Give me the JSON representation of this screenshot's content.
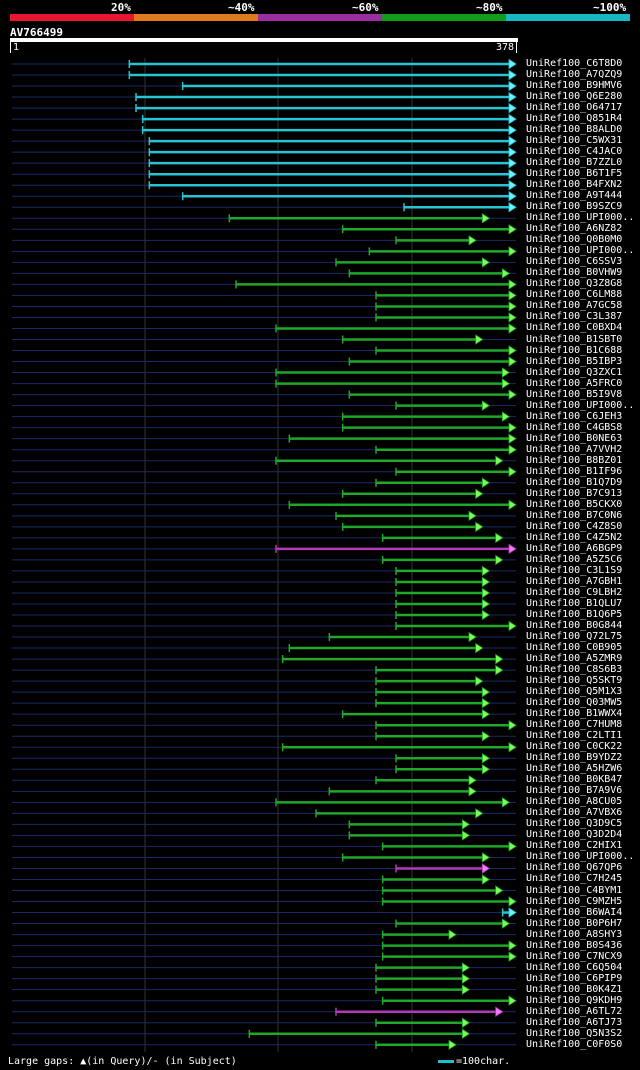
{
  "legend": {
    "labels": [
      "20%",
      "~40%",
      "~60%",
      "~80%",
      "~100%"
    ],
    "colors": [
      "#e8162e",
      "#e07a1f",
      "#9b2fa0",
      "#119c1a",
      "#17b8c4"
    ]
  },
  "query": {
    "name": "AV766499",
    "start": "1",
    "end": "378",
    "length": 378
  },
  "footer": {
    "gaps": "Large gaps: ▲(in Query)/- (in Subject)",
    "key": "=100char."
  },
  "hits": [
    {
      "label": "UniRef100_C6T8D0",
      "start": 88,
      "end": 378,
      "color": "cyan"
    },
    {
      "label": "UniRef100_A7QZQ9",
      "start": 88,
      "end": 378,
      "color": "cyan"
    },
    {
      "label": "UniRef100_B9HMV6",
      "start": 128,
      "end": 378,
      "color": "cyan"
    },
    {
      "label": "UniRef100_Q6E280",
      "start": 93,
      "end": 378,
      "color": "cyan"
    },
    {
      "label": "UniRef100_O64717",
      "start": 93,
      "end": 378,
      "color": "cyan"
    },
    {
      "label": "UniRef100_Q851R4",
      "start": 98,
      "end": 378,
      "color": "cyan"
    },
    {
      "label": "UniRef100_B8ALD0",
      "start": 98,
      "end": 378,
      "color": "cyan"
    },
    {
      "label": "UniRef100_C5WX31",
      "start": 103,
      "end": 378,
      "color": "cyan"
    },
    {
      "label": "UniRef100_C4JAC0",
      "start": 103,
      "end": 378,
      "color": "cyan"
    },
    {
      "label": "UniRef100_B7ZZL0",
      "start": 103,
      "end": 378,
      "color": "cyan"
    },
    {
      "label": "UniRef100_B6T1F5",
      "start": 103,
      "end": 378,
      "color": "cyan"
    },
    {
      "label": "UniRef100_B4FXN2",
      "start": 103,
      "end": 378,
      "color": "cyan"
    },
    {
      "label": "UniRef100_A9T444",
      "start": 128,
      "end": 378,
      "color": "cyan"
    },
    {
      "label": "UniRef100_B9SZC9",
      "start": 294,
      "end": 378,
      "color": "cyan"
    },
    {
      "label": "UniRef100_UPI000..",
      "start": 163,
      "end": 358,
      "color": "green"
    },
    {
      "label": "UniRef100_A6NZ82",
      "start": 248,
      "end": 378,
      "color": "green"
    },
    {
      "label": "UniRef100_Q0B0M0",
      "start": 288,
      "end": 348,
      "color": "green"
    },
    {
      "label": "UniRef100_UPI000..",
      "start": 268,
      "end": 378,
      "color": "green"
    },
    {
      "label": "UniRef100_C6SSV3",
      "start": 243,
      "end": 358,
      "color": "green"
    },
    {
      "label": "UniRef100_B0VHW9",
      "start": 253,
      "end": 373,
      "color": "green"
    },
    {
      "label": "UniRef100_Q3Z8G8",
      "start": 168,
      "end": 378,
      "color": "green"
    },
    {
      "label": "UniRef100_C6LM88",
      "start": 273,
      "end": 378,
      "color": "green"
    },
    {
      "label": "UniRef100_A7GC58",
      "start": 273,
      "end": 378,
      "color": "green"
    },
    {
      "label": "UniRef100_C3L387",
      "start": 273,
      "end": 378,
      "color": "green"
    },
    {
      "label": "UniRef100_C0BXD4",
      "start": 198,
      "end": 378,
      "color": "green"
    },
    {
      "label": "UniRef100_B1SBT0",
      "start": 248,
      "end": 353,
      "color": "green"
    },
    {
      "label": "UniRef100_B1C688",
      "start": 273,
      "end": 378,
      "color": "green"
    },
    {
      "label": "UniRef100_B5IBP3",
      "start": 253,
      "end": 378,
      "color": "green"
    },
    {
      "label": "UniRef100_Q3ZXC1",
      "start": 198,
      "end": 373,
      "color": "green"
    },
    {
      "label": "UniRef100_A5FRC0",
      "start": 198,
      "end": 373,
      "color": "green"
    },
    {
      "label": "UniRef100_B5I9V8",
      "start": 253,
      "end": 378,
      "color": "green"
    },
    {
      "label": "UniRef100_UPI000..",
      "start": 288,
      "end": 358,
      "color": "green"
    },
    {
      "label": "UniRef100_C6JEH3",
      "start": 248,
      "end": 373,
      "color": "green"
    },
    {
      "label": "UniRef100_C4GBS8",
      "start": 248,
      "end": 378,
      "color": "green"
    },
    {
      "label": "UniRef100_B0NE63",
      "start": 208,
      "end": 378,
      "color": "green"
    },
    {
      "label": "UniRef100_A7VVH2",
      "start": 273,
      "end": 378,
      "color": "green"
    },
    {
      "label": "UniRef100_B8BZ01",
      "start": 198,
      "end": 368,
      "color": "green"
    },
    {
      "label": "UniRef100_B1IF96",
      "start": 288,
      "end": 378,
      "color": "green"
    },
    {
      "label": "UniRef100_B1Q7D9",
      "start": 273,
      "end": 358,
      "color": "green"
    },
    {
      "label": "UniRef100_B7C913",
      "start": 248,
      "end": 353,
      "color": "green"
    },
    {
      "label": "UniRef100_B5CKX0",
      "start": 208,
      "end": 378,
      "color": "green"
    },
    {
      "label": "UniRef100_B7C0N6",
      "start": 243,
      "end": 348,
      "color": "green"
    },
    {
      "label": "UniRef100_C4Z8S0",
      "start": 248,
      "end": 353,
      "color": "green"
    },
    {
      "label": "UniRef100_C4Z5N2",
      "start": 278,
      "end": 368,
      "color": "green"
    },
    {
      "label": "UniRef100_A6BGP9",
      "start": 198,
      "end": 378,
      "color": "purple"
    },
    {
      "label": "UniRef100_A5Z5C6",
      "start": 278,
      "end": 368,
      "color": "green"
    },
    {
      "label": "UniRef100_C3L1S9",
      "start": 288,
      "end": 358,
      "color": "green"
    },
    {
      "label": "UniRef100_A7GBH1",
      "start": 288,
      "end": 358,
      "color": "green"
    },
    {
      "label": "UniRef100_C9LBH2",
      "start": 288,
      "end": 358,
      "color": "green"
    },
    {
      "label": "UniRef100_B1QLU7",
      "start": 288,
      "end": 358,
      "color": "green"
    },
    {
      "label": "UniRef100_B1Q6P5",
      "start": 288,
      "end": 358,
      "color": "green"
    },
    {
      "label": "UniRef100_B0G844",
      "start": 288,
      "end": 378,
      "color": "green"
    },
    {
      "label": "UniRef100_Q72L75",
      "start": 238,
      "end": 348,
      "color": "green"
    },
    {
      "label": "UniRef100_C0B905",
      "start": 208,
      "end": 353,
      "color": "green"
    },
    {
      "label": "UniRef100_A5ZMR9",
      "start": 203,
      "end": 368,
      "color": "green"
    },
    {
      "label": "UniRef100_C8S6B3",
      "start": 273,
      "end": 368,
      "color": "green"
    },
    {
      "label": "UniRef100_Q5SKT9",
      "start": 273,
      "end": 353,
      "color": "green"
    },
    {
      "label": "UniRef100_Q5M1X3",
      "start": 273,
      "end": 358,
      "color": "green"
    },
    {
      "label": "UniRef100_Q03MW5",
      "start": 273,
      "end": 358,
      "color": "green"
    },
    {
      "label": "UniRef100_B1WWX4",
      "start": 248,
      "end": 358,
      "color": "green"
    },
    {
      "label": "UniRef100_C7HUM8",
      "start": 273,
      "end": 378,
      "color": "green"
    },
    {
      "label": "UniRef100_C2LTI1",
      "start": 273,
      "end": 358,
      "color": "green"
    },
    {
      "label": "UniRef100_C0CK22",
      "start": 203,
      "end": 378,
      "color": "green"
    },
    {
      "label": "UniRef100_B9YDZ2",
      "start": 288,
      "end": 358,
      "color": "green"
    },
    {
      "label": "UniRef100_A5HZW6",
      "start": 288,
      "end": 358,
      "color": "green"
    },
    {
      "label": "UniRef100_B0KB47",
      "start": 273,
      "end": 348,
      "color": "green"
    },
    {
      "label": "UniRef100_B7A9V6",
      "start": 238,
      "end": 348,
      "color": "green"
    },
    {
      "label": "UniRef100_A8CU05",
      "start": 198,
      "end": 373,
      "color": "green"
    },
    {
      "label": "UniRef100_A7VBX6",
      "start": 228,
      "end": 353,
      "color": "green"
    },
    {
      "label": "UniRef100_Q3D9C5",
      "start": 253,
      "end": 343,
      "color": "green"
    },
    {
      "label": "UniRef100_Q3D2D4",
      "start": 253,
      "end": 343,
      "color": "green"
    },
    {
      "label": "UniRef100_C2HIX1",
      "start": 278,
      "end": 378,
      "color": "green"
    },
    {
      "label": "UniRef100_UPI000..",
      "start": 248,
      "end": 358,
      "color": "green"
    },
    {
      "label": "UniRef100_Q67QP6",
      "start": 288,
      "end": 358,
      "color": "purple"
    },
    {
      "label": "UniRef100_C7H245",
      "start": 278,
      "end": 358,
      "color": "green"
    },
    {
      "label": "UniRef100_C4BYM1",
      "start": 278,
      "end": 368,
      "color": "green"
    },
    {
      "label": "UniRef100_C9MZH5",
      "start": 278,
      "end": 378,
      "color": "green"
    },
    {
      "label": "UniRef100_B6WAI4",
      "start": 383,
      "end": 368,
      "color": "cyan"
    },
    {
      "label": "UniRef100_B0P6H7",
      "start": 288,
      "end": 373,
      "color": "green"
    },
    {
      "label": "UniRef100_A8SHY3",
      "start": 278,
      "end": 333,
      "color": "green"
    },
    {
      "label": "UniRef100_B0S436",
      "start": 278,
      "end": 378,
      "color": "green"
    },
    {
      "label": "UniRef100_C7NCX9",
      "start": 278,
      "end": 378,
      "color": "green"
    },
    {
      "label": "UniRef100_C6Q504",
      "start": 273,
      "end": 343,
      "color": "green"
    },
    {
      "label": "UniRef100_C6PIP9",
      "start": 273,
      "end": 343,
      "color": "green"
    },
    {
      "label": "UniRef100_B0K4Z1",
      "start": 273,
      "end": 343,
      "color": "green"
    },
    {
      "label": "UniRef100_Q9KDH9",
      "start": 278,
      "end": 378,
      "color": "green"
    },
    {
      "label": "UniRef100_A6TL72",
      "start": 243,
      "end": 368,
      "color": "purple"
    },
    {
      "label": "UniRef100_A6TJ73",
      "start": 273,
      "end": 343,
      "color": "green"
    },
    {
      "label": "UniRef100_Q5N3S2",
      "start": 178,
      "end": 343,
      "color": "green"
    },
    {
      "label": "UniRef100_C0F0S0",
      "start": 273,
      "end": 333,
      "color": "green"
    }
  ]
}
